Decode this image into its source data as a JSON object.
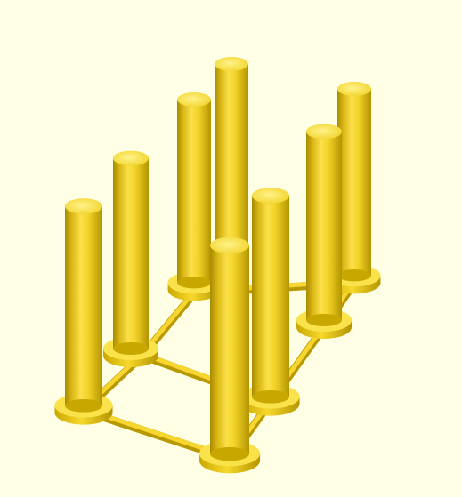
{
  "scene": {
    "background": "#ffffe5",
    "model_color": "#f9d72c",
    "shade_dark": "#b89800",
    "shade_mid": "#e4c21a",
    "highlight": "#fff27a",
    "object": "pins-on-base-frame",
    "pin_count": 8,
    "rings": 8
  }
}
